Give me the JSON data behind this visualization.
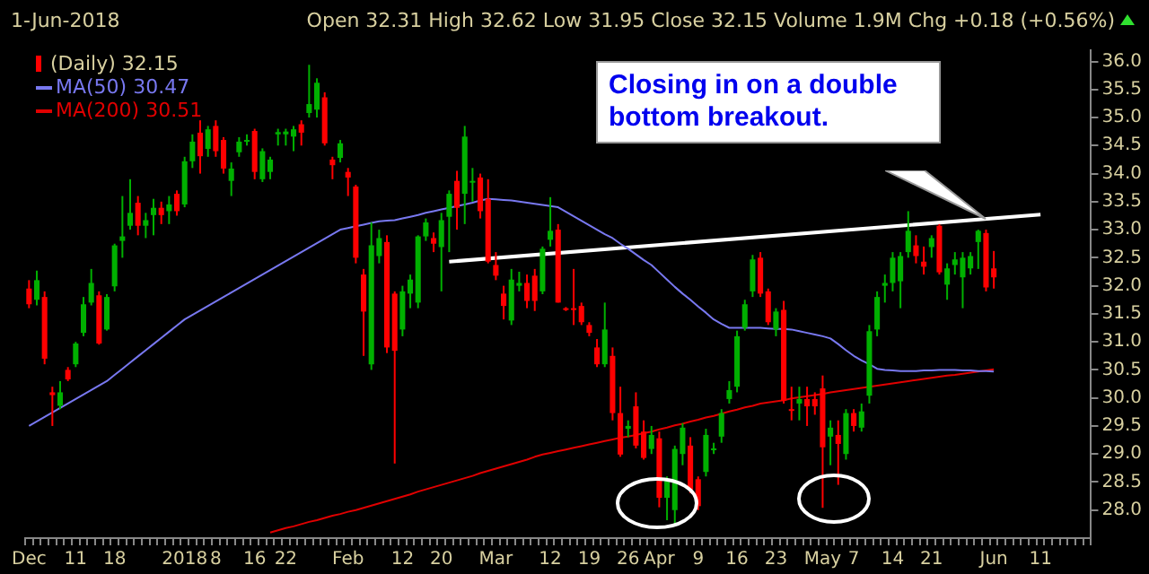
{
  "chart_data": {
    "type": "candlestick",
    "title": "1-Jun-2018",
    "subtitle": "Open 32.31  High 32.62  Low 31.95  Close 32.15  Volume 1.9M  Chg +0.18 (+0.56%)",
    "annotations": [
      "Closing in on a double bottom breakout."
    ],
    "categories": [
      "Dec",
      null,
      null,
      null,
      null,
      null,
      "11",
      null,
      null,
      null,
      null,
      "18",
      null,
      null,
      null,
      null,
      null,
      null,
      null,
      null,
      "2018",
      null,
      null,
      null,
      "8",
      null,
      null,
      null,
      null,
      "16",
      null,
      null,
      null,
      "22",
      null,
      null,
      null,
      null,
      null,
      null,
      null,
      "Feb",
      null,
      null,
      null,
      null,
      null,
      null,
      "12",
      null,
      null,
      null,
      null,
      "20",
      null,
      null,
      null,
      null,
      null,
      null,
      "Mar",
      null,
      null,
      null,
      null,
      null,
      null,
      "12",
      null,
      null,
      null,
      null,
      "19",
      null,
      null,
      null,
      null,
      "26",
      null,
      null,
      null,
      "Apr",
      null,
      null,
      null,
      null,
      "9",
      null,
      null,
      null,
      null,
      "16",
      null,
      null,
      null,
      null,
      "23",
      null,
      null,
      null,
      null,
      null,
      "May",
      null,
      null,
      null,
      "7",
      null,
      null,
      null,
      null,
      "14",
      null,
      null,
      null,
      null,
      "21",
      null,
      null,
      null,
      null,
      null,
      null,
      null,
      "Jun",
      null,
      null,
      null,
      null,
      null,
      "11",
      null,
      null,
      null,
      null,
      null,
      null
    ],
    "ylim": [
      27.5,
      36.2
    ],
    "yticks": [
      {
        "value": 28,
        "label": "28.0"
      },
      28.5,
      {
        "value": 29,
        "label": "29.0"
      },
      29.5,
      {
        "value": 30,
        "label": "30.0"
      },
      30.5,
      {
        "value": 31,
        "label": "31.0"
      },
      31.5,
      {
        "value": 32,
        "label": "32.0"
      },
      32.5,
      {
        "value": 33,
        "label": "33.0"
      },
      33.5,
      {
        "value": 34,
        "label": "34.0"
      },
      34.5,
      {
        "value": 35,
        "label": "35.0"
      },
      35.5,
      {
        "value": 36,
        "label": "36.0"
      }
    ],
    "legend": "top left",
    "series": [
      {
        "type": "candlestick",
        "name": "(Daily) 32.15",
        "colors": [
          "#ff0000",
          "#00b000",
          "#ff0000",
          "#ff0000",
          "#00b000",
          "#ff0000",
          "#00b000",
          "#00b000",
          "#00b000",
          "#ff0000",
          "#00b000",
          "#00b000",
          "#00b000",
          "#00b000",
          "#ff0000",
          "#00b000",
          "#00b000",
          "#ff0000",
          "#00b000",
          "#ff0000",
          "#00b000",
          "#00b000",
          "#ff0000",
          "#00b000",
          "#ff0000",
          "#ff0000",
          "#00b000",
          "#00b000",
          "#00b000",
          "#ff0000",
          "#00b000",
          "#00b000",
          "#00b000",
          "#00b000",
          "#00b000",
          "#ff0000",
          "#00b000",
          "#00b000",
          "#ff0000",
          "#ff0000",
          "#00b000",
          "#ff0000",
          "#ff0000",
          "#ff0000",
          "#00b000",
          "#00b000",
          "#ff0000",
          "#ff0000",
          "#00b000",
          "#00b000",
          "#00b000",
          "#00b000",
          "#ff0000",
          "#00b000",
          "#00b000",
          "#ff0000",
          "#00b000",
          "#00b000",
          "#ff0000",
          "#ff0000",
          "#ff0000",
          "#ff0000",
          "#00b000",
          "#00b000",
          "#ff0000",
          "#ff0000",
          "#00b000",
          "#00b000",
          "#ff0000",
          "#ff0000",
          "#ff0000",
          "#ff0000",
          "#ff0000",
          "#ff0000",
          "#00b000",
          "#ff0000",
          "#ff0000",
          "#00b000",
          "#ff0000",
          "#ff0000",
          "#00b000",
          "#ff0000",
          "#00b000",
          "#00b000",
          "#00b000",
          "#ff0000",
          "#ff0000",
          "#00b000",
          "#00b000",
          "#00b000",
          "#00b000",
          "#00b000",
          "#00b000",
          "#00b000",
          "#ff0000",
          "#ff0000",
          "#00b000",
          "#ff0000",
          "#ff0000",
          "#00b000",
          "#ff0000",
          "#ff0000",
          "#ff0000",
          "#00b000",
          "#ff0000",
          "#00b000",
          "#ff0000",
          "#00b000",
          "#00b000",
          "#00b000",
          "#00b000",
          "#00b000",
          "#00b000",
          "#00b000",
          "#ff0000",
          "#ff0000",
          "#00b000",
          "#ff0000",
          "#00b000",
          "#00b000",
          "#00b000",
          "#00b000",
          "#00b000",
          "#ff0000",
          "#ff0000",
          null,
          null,
          null,
          null,
          null,
          null,
          null,
          null,
          null,
          null,
          null,
          null
        ],
        "ohlc": [
          [
            31.95,
            32.1,
            31.6,
            31.67
          ],
          [
            31.75,
            32.27,
            31.65,
            32.1
          ],
          [
            31.8,
            31.9,
            30.6,
            30.7
          ],
          [
            30.1,
            30.2,
            29.5,
            30.05
          ],
          [
            29.86,
            30.3,
            29.8,
            30.1
          ],
          [
            30.5,
            30.55,
            30.3,
            30.33
          ],
          [
            30.6,
            31.0,
            30.55,
            30.97
          ],
          [
            31.16,
            31.8,
            31.1,
            31.67
          ],
          [
            31.7,
            32.3,
            31.65,
            32.05
          ],
          [
            31.83,
            31.9,
            30.95,
            30.97
          ],
          [
            31.22,
            31.85,
            31.2,
            31.8
          ],
          [
            31.99,
            32.75,
            31.9,
            32.72
          ],
          [
            32.8,
            33.6,
            32.5,
            32.88
          ],
          [
            33.07,
            33.9,
            33.0,
            33.3
          ],
          [
            33.48,
            33.6,
            32.9,
            33.07
          ],
          [
            33.07,
            33.3,
            32.85,
            33.17
          ],
          [
            33.26,
            33.55,
            32.9,
            33.39
          ],
          [
            33.39,
            33.5,
            33.1,
            33.26
          ],
          [
            33.33,
            33.6,
            33.1,
            33.45
          ],
          [
            33.64,
            33.7,
            33.25,
            33.33
          ],
          [
            33.45,
            34.3,
            33.4,
            34.22
          ],
          [
            34.22,
            34.7,
            34.1,
            34.57
          ],
          [
            34.73,
            34.95,
            34.0,
            34.31
          ],
          [
            34.44,
            34.85,
            34.3,
            34.79
          ],
          [
            34.85,
            34.95,
            34.3,
            34.4
          ],
          [
            34.6,
            34.65,
            34.0,
            34.09
          ],
          [
            33.87,
            34.2,
            33.6,
            34.09
          ],
          [
            34.38,
            34.65,
            34.3,
            34.57
          ],
          [
            34.6,
            34.7,
            34.5,
            34.6
          ],
          [
            34.76,
            34.8,
            33.9,
            34.03
          ],
          [
            33.9,
            34.45,
            33.85,
            34.4
          ],
          [
            34.03,
            34.3,
            33.9,
            34.25
          ],
          [
            34.7,
            34.8,
            34.5,
            34.74
          ],
          [
            34.7,
            34.8,
            34.5,
            34.75
          ],
          [
            34.66,
            34.85,
            34.4,
            34.79
          ],
          [
            34.88,
            34.95,
            34.5,
            34.73
          ],
          [
            35.08,
            35.94,
            35.0,
            35.24
          ],
          [
            35.14,
            35.7,
            35.0,
            35.62
          ],
          [
            35.36,
            35.45,
            34.5,
            34.54
          ],
          [
            34.25,
            34.3,
            33.9,
            34.15
          ],
          [
            34.28,
            34.6,
            34.2,
            34.54
          ],
          [
            34.03,
            34.1,
            33.6,
            33.93
          ],
          [
            33.77,
            33.8,
            32.4,
            32.5
          ],
          [
            32.2,
            32.3,
            30.75,
            31.54
          ],
          [
            30.6,
            33.13,
            30.5,
            32.72
          ],
          [
            32.53,
            33.0,
            32.4,
            32.85
          ],
          [
            32.78,
            32.9,
            30.8,
            30.9
          ],
          [
            31.86,
            31.9,
            28.83,
            30.84
          ],
          [
            31.22,
            32.0,
            31.1,
            31.9
          ],
          [
            31.86,
            32.2,
            31.6,
            32.11
          ],
          [
            31.7,
            32.9,
            31.6,
            32.88
          ],
          [
            32.88,
            33.2,
            32.8,
            33.13
          ],
          [
            32.85,
            32.95,
            32.6,
            32.75
          ],
          [
            32.69,
            33.3,
            31.9,
            33.17
          ],
          [
            33.23,
            33.7,
            32.6,
            33.64
          ],
          [
            33.87,
            34.05,
            33.0,
            33.39
          ],
          [
            33.64,
            34.85,
            33.1,
            34.66
          ],
          [
            33.87,
            34.1,
            33.5,
            33.87
          ],
          [
            33.93,
            34.0,
            33.2,
            33.33
          ],
          [
            33.55,
            33.9,
            32.4,
            32.43
          ],
          [
            32.37,
            32.6,
            32.1,
            32.18
          ],
          [
            31.86,
            32.0,
            31.4,
            31.64
          ],
          [
            31.38,
            32.3,
            31.3,
            32.11
          ],
          [
            32.0,
            32.25,
            31.9,
            32.05
          ],
          [
            32.05,
            32.2,
            31.6,
            31.73
          ],
          [
            32.18,
            32.3,
            31.55,
            31.73
          ],
          [
            31.9,
            32.7,
            31.85,
            32.66
          ],
          [
            32.82,
            33.58,
            32.7,
            32.98
          ],
          [
            33.0,
            33.1,
            31.7,
            31.7
          ],
          [
            31.6,
            31.62,
            31.55,
            31.57
          ],
          [
            31.6,
            32.3,
            31.3,
            31.57
          ],
          [
            31.64,
            31.7,
            31.3,
            31.35
          ],
          [
            31.3,
            31.35,
            31.1,
            31.16
          ],
          [
            30.9,
            31.05,
            30.55,
            30.6
          ],
          [
            30.6,
            31.7,
            30.55,
            31.22
          ],
          [
            30.75,
            30.9,
            29.6,
            29.73
          ],
          [
            29.73,
            30.2,
            28.95,
            28.99
          ],
          [
            29.45,
            29.6,
            29.3,
            29.5
          ],
          [
            29.85,
            30.1,
            29.1,
            29.15
          ],
          [
            29.4,
            29.6,
            28.9,
            28.93
          ],
          [
            29.09,
            29.5,
            29.0,
            29.34
          ],
          [
            29.28,
            29.4,
            28.05,
            28.22
          ],
          [
            28.22,
            28.6,
            27.82,
            28.55
          ],
          [
            28.0,
            29.15,
            27.75,
            29.09
          ],
          [
            29.0,
            29.55,
            28.8,
            29.47
          ],
          [
            29.15,
            29.3,
            28.3,
            28.36
          ],
          [
            28.55,
            28.6,
            28.0,
            28.07
          ],
          [
            28.68,
            29.45,
            28.6,
            29.34
          ],
          [
            29.1,
            29.2,
            29.0,
            29.1
          ],
          [
            29.31,
            29.8,
            29.2,
            29.73
          ],
          [
            29.98,
            30.3,
            29.9,
            30.14
          ],
          [
            30.2,
            31.2,
            30.1,
            31.1
          ],
          [
            31.25,
            31.75,
            31.2,
            31.67
          ],
          [
            31.9,
            32.55,
            31.8,
            32.47
          ],
          [
            32.5,
            32.6,
            31.8,
            31.86
          ],
          [
            31.9,
            31.95,
            31.3,
            31.35
          ],
          [
            31.22,
            31.6,
            31.1,
            31.54
          ],
          [
            31.57,
            31.73,
            29.9,
            29.95
          ],
          [
            29.8,
            30.2,
            29.6,
            29.8
          ],
          [
            29.9,
            30.2,
            29.6,
            29.98
          ],
          [
            29.98,
            30.2,
            29.5,
            29.85
          ],
          [
            29.98,
            30.1,
            29.7,
            29.85
          ],
          [
            30.17,
            30.4,
            28.04,
            29.12
          ],
          [
            29.31,
            29.6,
            28.8,
            29.47
          ],
          [
            29.34,
            29.6,
            28.45,
            29.18
          ],
          [
            29.0,
            29.8,
            28.9,
            29.73
          ],
          [
            29.73,
            29.8,
            29.4,
            29.5
          ],
          [
            29.47,
            29.9,
            29.4,
            29.76
          ],
          [
            30.04,
            31.3,
            29.9,
            31.19
          ],
          [
            31.22,
            31.9,
            31.1,
            31.8
          ],
          [
            32.0,
            32.2,
            31.7,
            32.05
          ],
          [
            32.05,
            32.6,
            31.9,
            32.5
          ],
          [
            32.08,
            32.6,
            31.6,
            32.53
          ],
          [
            32.6,
            33.33,
            32.5,
            32.98
          ],
          [
            32.72,
            32.9,
            32.4,
            32.53
          ],
          [
            32.43,
            32.7,
            32.2,
            32.34
          ],
          [
            32.69,
            32.9,
            32.5,
            32.85
          ],
          [
            33.07,
            33.1,
            32.2,
            32.24
          ],
          [
            32.02,
            32.4,
            31.75,
            32.31
          ],
          [
            32.37,
            32.6,
            32.2,
            32.47
          ],
          [
            32.15,
            32.6,
            31.6,
            32.5
          ],
          [
            32.31,
            32.6,
            32.2,
            32.53
          ],
          [
            32.78,
            33.0,
            32.3,
            32.98
          ],
          [
            32.94,
            33.0,
            31.9,
            31.97
          ],
          [
            32.31,
            32.62,
            31.95,
            32.15
          ],
          null,
          null,
          null,
          null,
          null,
          null,
          null,
          null,
          null,
          null,
          null,
          null
        ]
      },
      {
        "type": "line",
        "name": "MA(50) 30.47",
        "color": "#7878f0",
        "values": [
          29.5,
          29.58,
          29.66,
          29.74,
          29.82,
          29.9,
          29.98,
          30.06,
          30.14,
          30.22,
          30.3,
          30.41,
          30.52,
          30.63,
          30.74,
          30.85,
          30.96,
          31.07,
          31.18,
          31.29,
          31.4,
          31.48,
          31.56,
          31.64,
          31.72,
          31.8,
          31.88,
          31.96,
          32.04,
          32.12,
          32.2,
          32.28,
          32.36,
          32.44,
          32.52,
          32.6,
          32.68,
          32.76,
          32.84,
          32.92,
          33.0,
          33.03,
          33.06,
          33.09,
          33.12,
          33.15,
          33.16,
          33.17,
          33.2,
          33.23,
          33.26,
          33.3,
          33.33,
          33.36,
          33.39,
          33.42,
          33.45,
          33.48,
          33.52,
          33.55,
          33.54,
          33.53,
          33.52,
          33.5,
          33.48,
          33.46,
          33.44,
          33.42,
          33.4,
          33.32,
          33.24,
          33.16,
          33.08,
          33.0,
          32.92,
          32.85,
          32.75,
          32.66,
          32.56,
          32.46,
          32.37,
          32.24,
          32.11,
          31.98,
          31.86,
          31.75,
          31.63,
          31.52,
          31.4,
          31.32,
          31.25,
          31.25,
          31.25,
          31.25,
          31.25,
          31.24,
          31.23,
          31.23,
          31.22,
          31.19,
          31.16,
          31.13,
          31.1,
          31.06,
          30.96,
          30.85,
          30.75,
          30.67,
          30.6,
          30.52,
          30.5,
          30.49,
          30.48,
          30.48,
          30.48,
          30.49,
          30.49,
          30.5,
          30.5,
          30.5,
          30.49,
          30.49,
          30.48,
          30.48,
          30.47,
          null,
          null,
          null,
          null,
          null,
          null,
          null,
          null,
          null,
          null,
          null,
          null
        ]
      },
      {
        "type": "line",
        "name": "MA(200) 30.51",
        "color": "#e00000",
        "values": [
          null,
          null,
          null,
          null,
          null,
          null,
          null,
          null,
          null,
          null,
          null,
          null,
          null,
          null,
          null,
          null,
          null,
          null,
          null,
          null,
          null,
          null,
          null,
          null,
          null,
          null,
          null,
          null,
          null,
          null,
          null,
          27.6,
          27.64,
          27.68,
          27.71,
          27.75,
          27.79,
          27.82,
          27.86,
          27.9,
          27.93,
          27.97,
          28.0,
          28.04,
          28.08,
          28.12,
          28.16,
          28.2,
          28.24,
          28.28,
          28.33,
          28.37,
          28.41,
          28.45,
          28.49,
          28.53,
          28.57,
          28.61,
          28.66,
          28.7,
          28.74,
          28.78,
          28.82,
          28.86,
          28.9,
          28.95,
          28.99,
          29.02,
          29.05,
          29.08,
          29.11,
          29.14,
          29.17,
          29.2,
          29.23,
          29.26,
          29.29,
          29.31,
          29.34,
          29.37,
          29.4,
          29.44,
          29.47,
          29.51,
          29.54,
          29.58,
          29.61,
          29.65,
          29.68,
          29.72,
          29.76,
          29.79,
          29.83,
          29.86,
          29.9,
          29.92,
          29.94,
          29.96,
          29.99,
          30.01,
          30.03,
          30.05,
          30.07,
          30.1,
          30.12,
          30.14,
          30.16,
          30.18,
          30.2,
          30.22,
          30.24,
          30.26,
          30.28,
          30.3,
          30.32,
          30.34,
          30.36,
          30.38,
          30.4,
          30.41,
          30.43,
          30.45,
          30.47,
          30.49,
          30.51,
          null,
          null,
          null,
          null,
          null,
          null,
          null,
          null,
          null,
          null,
          null,
          null
        ]
      },
      {
        "type": "line",
        "color": "#ffffff",
        "values": [
          null,
          null,
          null,
          null,
          null,
          null,
          null,
          null,
          null,
          null,
          null,
          null,
          null,
          null,
          null,
          null,
          null,
          null,
          null,
          null,
          null,
          null,
          null,
          null,
          null,
          null,
          null,
          null,
          null,
          null,
          null,
          null,
          null,
          null,
          null,
          null,
          null,
          null,
          null,
          null,
          null,
          null,
          null,
          null,
          null,
          null,
          null,
          null,
          null,
          null,
          null,
          null,
          null,
          null,
          32.43,
          null,
          null,
          null,
          null,
          null,
          null,
          null,
          null,
          null,
          null,
          null,
          null,
          null,
          null,
          null,
          null,
          null,
          null,
          null,
          null,
          null,
          null,
          null,
          null,
          null,
          null,
          null,
          null,
          null,
          null,
          null,
          null,
          null,
          null,
          null,
          null,
          null,
          null,
          null,
          null,
          null,
          null,
          null,
          null,
          null,
          null,
          null,
          null,
          null,
          null,
          null,
          null,
          null,
          null,
          null,
          null,
          null,
          null,
          null,
          null,
          null,
          null,
          null,
          null,
          null,
          null,
          null,
          null,
          null,
          null,
          null,
          null,
          null,
          null,
          null,
          33.27,
          null,
          null,
          null,
          null,
          null,
          null
        ]
      }
    ]
  }
}
